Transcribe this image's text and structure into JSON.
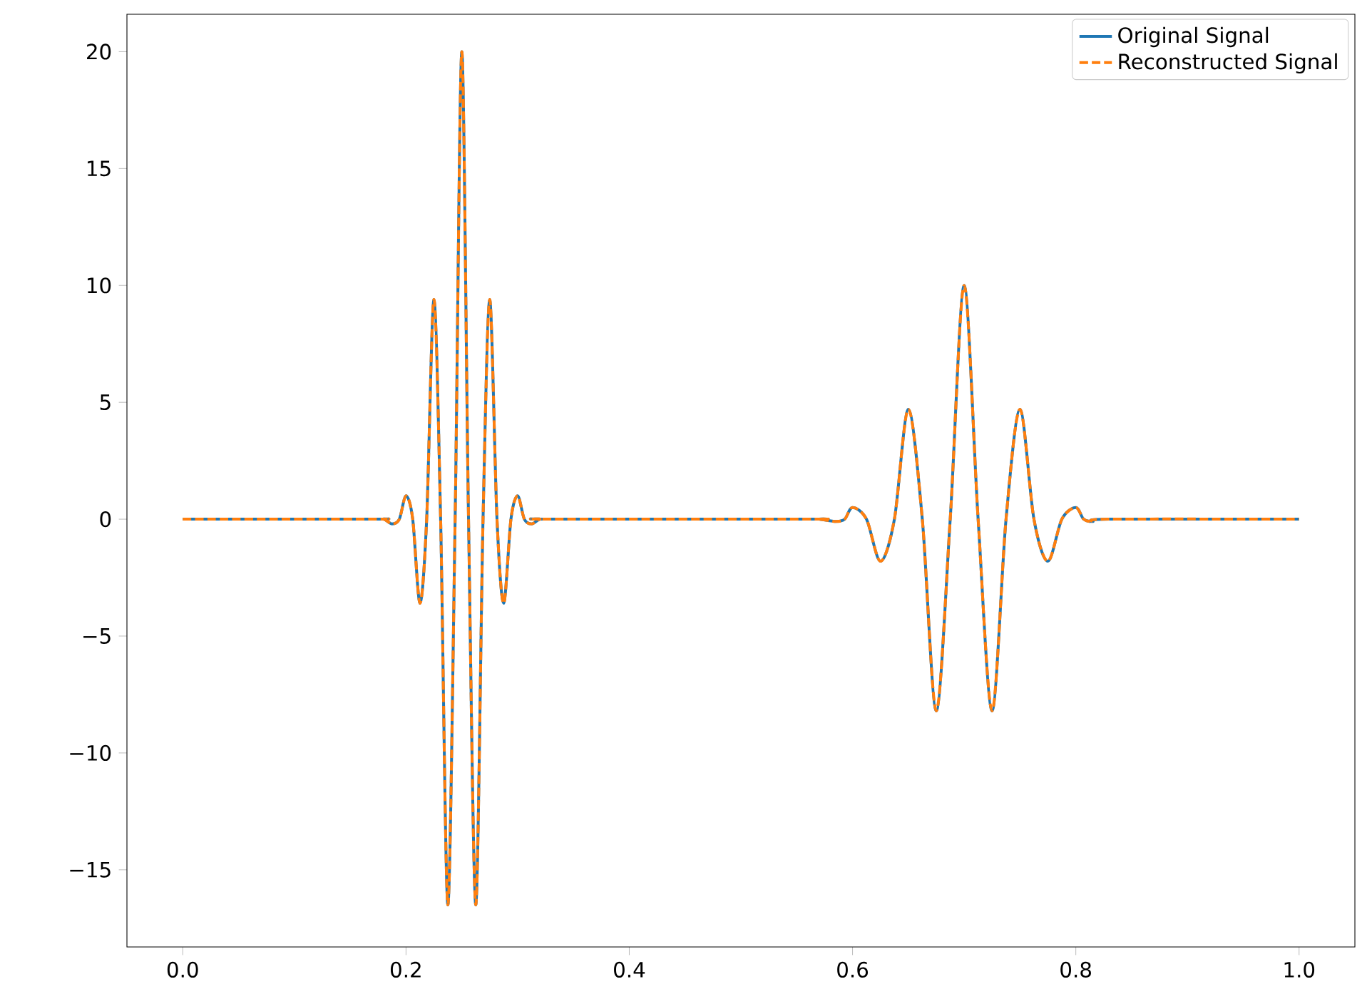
{
  "chart_data": {
    "type": "line",
    "legend": "top right",
    "x": [
      0,
      0.17,
      0.18,
      0.1875,
      0.194,
      0.2,
      0.206,
      0.2125,
      0.2185,
      0.225,
      0.231,
      0.2375,
      0.244,
      0.25,
      0.256,
      0.2625,
      0.269,
      0.275,
      0.2815,
      0.2875,
      0.294,
      0.3,
      0.306,
      0.3125,
      0.32,
      0.33,
      0.56,
      0.57,
      0.585,
      0.593,
      0.6,
      0.6125,
      0.625,
      0.6375,
      0.65,
      0.6625,
      0.675,
      0.6875,
      0.7,
      0.7125,
      0.725,
      0.7375,
      0.75,
      0.7625,
      0.775,
      0.7875,
      0.8,
      0.807,
      0.815,
      0.83,
      1.0
    ],
    "series": [
      {
        "name": "Original Signal",
        "color": "#1f77b4",
        "line_style": "solid",
        "values": [
          0,
          0,
          0,
          -0.2,
          0,
          1.0,
          0,
          -3.6,
          0,
          9.4,
          0,
          -16.5,
          0,
          20,
          0,
          -16.5,
          0,
          9.4,
          0,
          -3.6,
          0,
          1.0,
          0,
          -0.2,
          0,
          0,
          0,
          0,
          -0.1,
          0,
          0.5,
          0,
          -1.8,
          0,
          4.7,
          0,
          -8.2,
          0,
          10,
          0,
          -8.2,
          0,
          4.7,
          0,
          -1.8,
          0,
          0.5,
          0,
          -0.1,
          0,
          0
        ]
      },
      {
        "name": "Reconstructed Signal",
        "color": "#ff7f0e",
        "line_style": "dashed",
        "values": [
          0,
          0,
          0,
          -0.2,
          0,
          1.0,
          0,
          -3.6,
          0,
          9.4,
          0,
          -16.5,
          0,
          20,
          0,
          -16.5,
          0,
          9.4,
          0,
          -3.6,
          0,
          1.0,
          0,
          -0.2,
          0,
          0,
          0,
          0,
          -0.1,
          0,
          0.5,
          0,
          -1.8,
          0,
          4.7,
          0,
          -8.2,
          0,
          10,
          0,
          -8.2,
          0,
          4.7,
          0,
          -1.8,
          0,
          0.5,
          0,
          -0.1,
          0,
          0
        ]
      }
    ],
    "xlim": [
      -0.05,
      1.05
    ],
    "ylim": [
      -18.3,
      21.6
    ],
    "xticks": [
      {
        "value": 0,
        "label": "0.0"
      },
      {
        "value": 0.2,
        "label": "0.2"
      },
      {
        "value": 0.4,
        "label": "0.4"
      },
      {
        "value": 0.6,
        "label": "0.6"
      },
      {
        "value": 0.8,
        "label": "0.8"
      },
      {
        "value": 1.0,
        "label": "1.0"
      }
    ],
    "yticks": [
      {
        "value": -15,
        "label": "−15"
      },
      {
        "value": -10,
        "label": "−10"
      },
      {
        "value": -5,
        "label": "−5"
      },
      {
        "value": 0,
        "label": "0"
      },
      {
        "value": 5,
        "label": "5"
      },
      {
        "value": 10,
        "label": "10"
      },
      {
        "value": 15,
        "label": "15"
      },
      {
        "value": 20,
        "label": "20"
      }
    ]
  }
}
